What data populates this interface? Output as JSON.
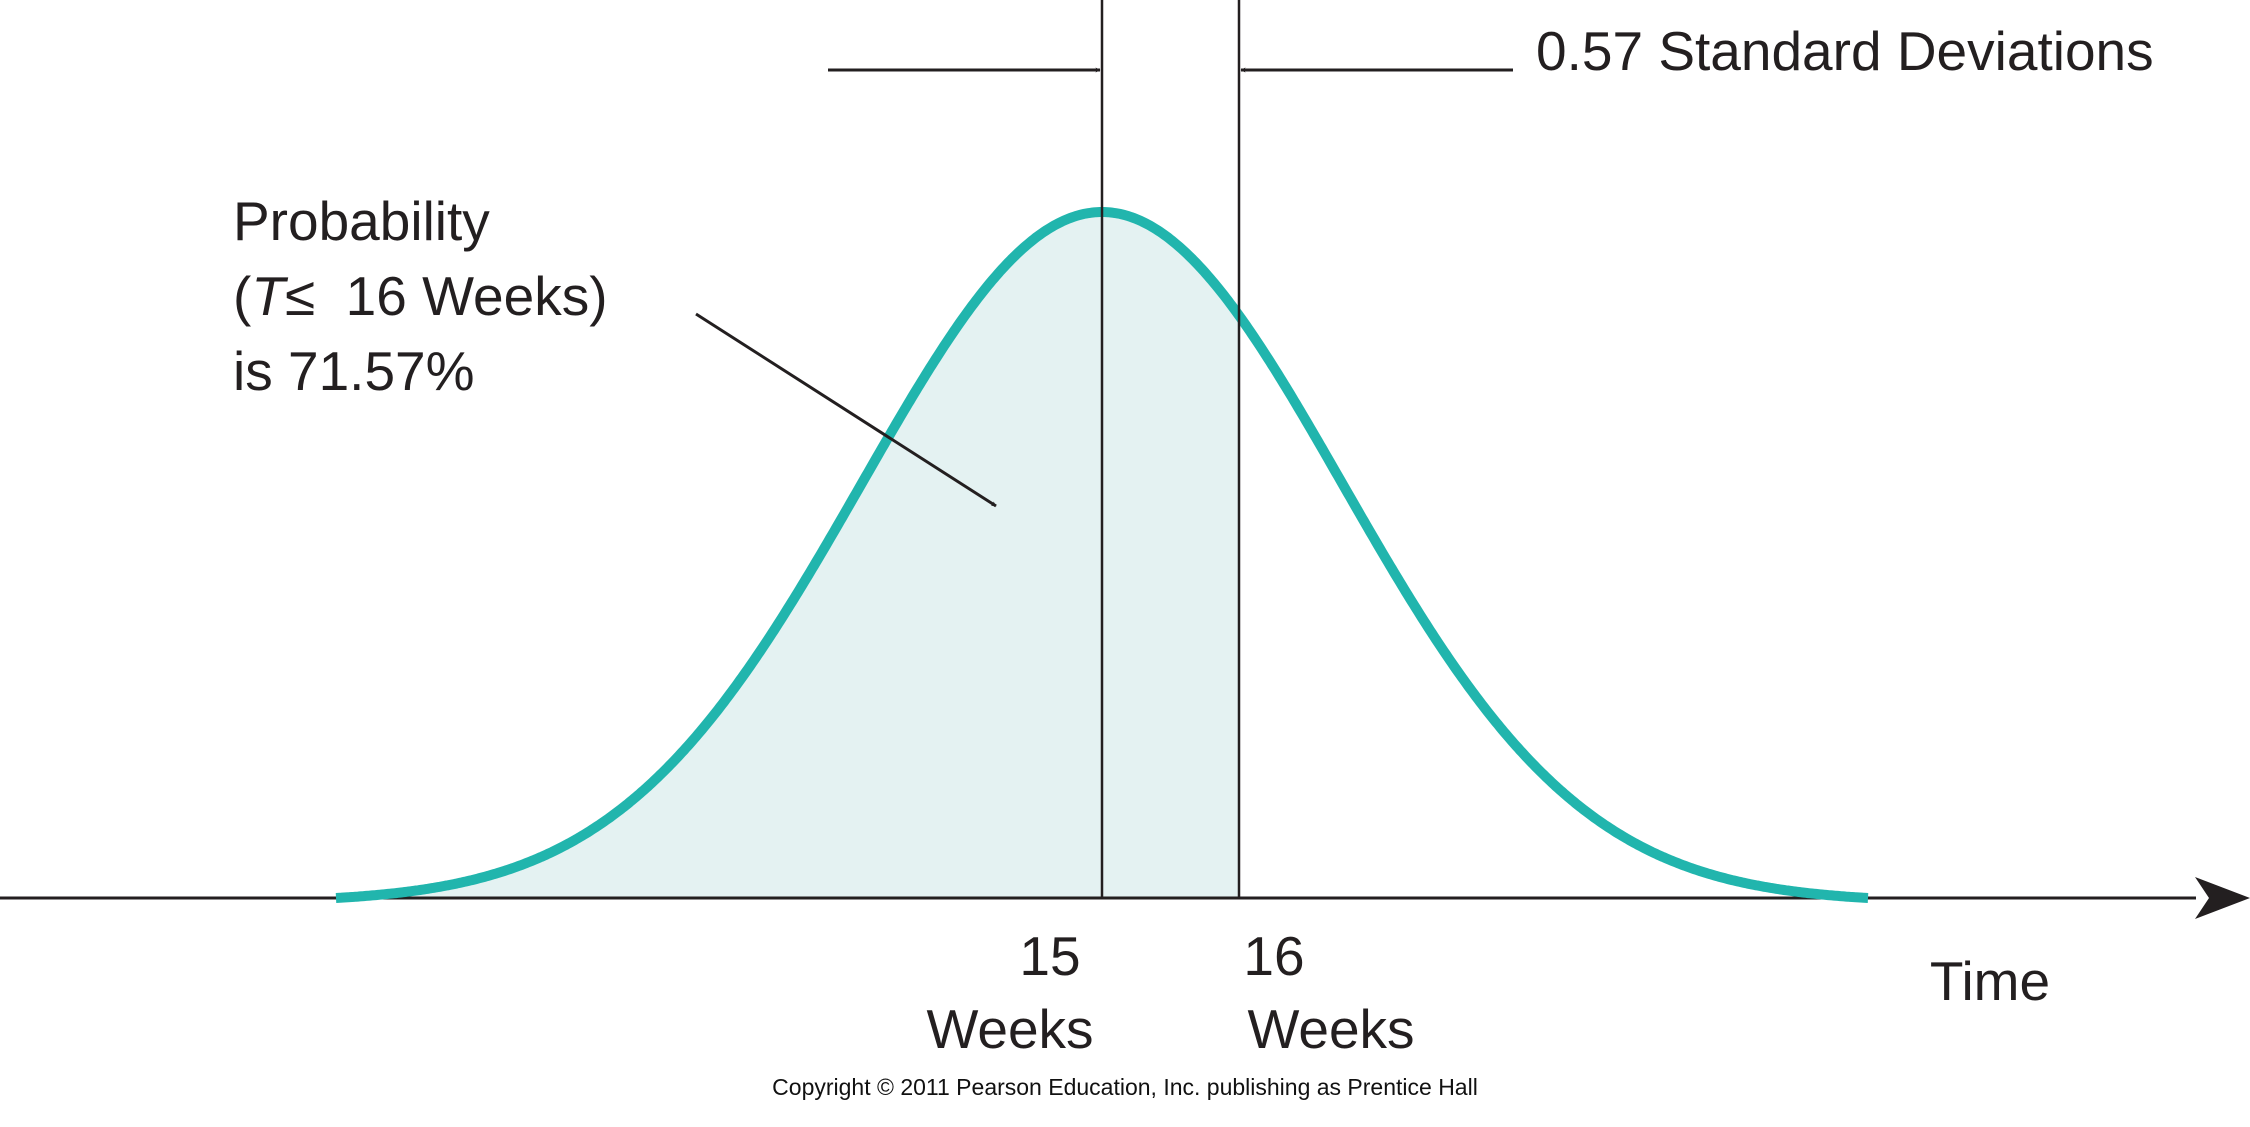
{
  "chart_data": {
    "type": "area",
    "distribution": "normal",
    "mean": 15,
    "threshold": 16,
    "z_score": 0.57,
    "shaded_region": "T ≤ 16 Weeks",
    "shaded_probability_percent": 71.57,
    "xlabel": "Time",
    "ticks": [
      {
        "value": 15,
        "number": "15",
        "unit": "Weeks"
      },
      {
        "value": 16,
        "number": "16",
        "unit": "Weeks"
      }
    ],
    "annotations": {
      "std_dev_label": "0.57 Standard Deviations",
      "probability_line1": "Probability",
      "probability_open": "(",
      "probability_var": "T",
      "probability_leq": "≤",
      "probability_rest": "  16 Weeks)",
      "probability_line3": "is 71.57%"
    },
    "colors": {
      "curve": "#21b5ad",
      "fill": "#e4f2f2",
      "ink": "#231f20"
    }
  },
  "footer": {
    "copyright": "Copyright © 2011 Pearson Education, Inc. publishing as Prentice Hall"
  }
}
